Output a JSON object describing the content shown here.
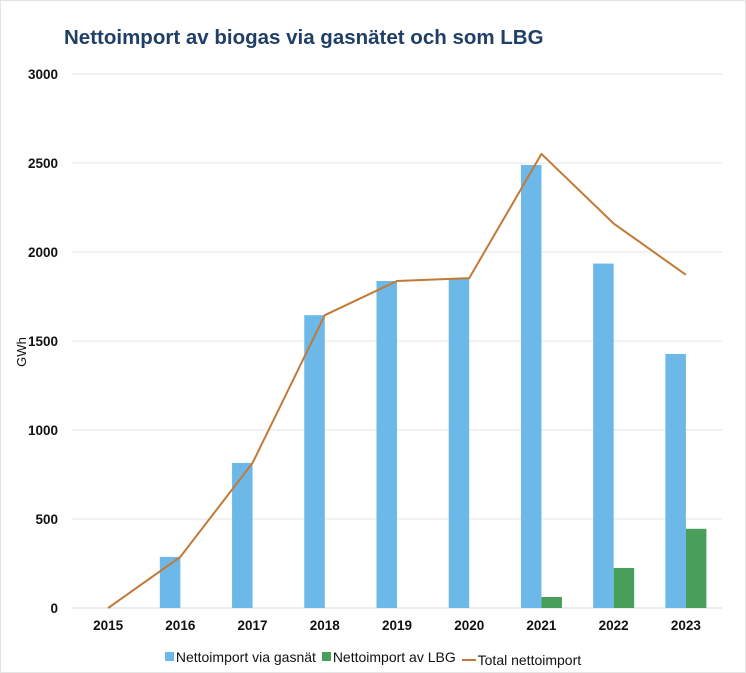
{
  "chart_data": {
    "type": "bar",
    "title": "Nettoimport av biogas via gasnätet och som LBG",
    "xlabel": "",
    "ylabel": "GWh",
    "ylim": [
      0,
      3000
    ],
    "yticks": [
      0,
      500,
      1000,
      1500,
      2000,
      2500,
      3000
    ],
    "grid": true,
    "legend_position": "bottom",
    "categories": [
      "2015",
      "2016",
      "2017",
      "2018",
      "2019",
      "2020",
      "2021",
      "2022",
      "2023"
    ],
    "series": [
      {
        "name": "Nettoimport via gasnät",
        "kind": "bar",
        "color": "#6cb8e8",
        "values": [
          0,
          287,
          815,
          1645,
          1837,
          1853,
          2489,
          1935,
          1427
        ]
      },
      {
        "name": "Nettoimport av LBG",
        "kind": "bar",
        "color": "#4a9e5c",
        "values": [
          0,
          0,
          0,
          0,
          0,
          0,
          62,
          225,
          445
        ]
      },
      {
        "name": "Total nettoimport",
        "kind": "line",
        "color": "#c27a36",
        "values": [
          0,
          287,
          815,
          1645,
          1837,
          1853,
          2551,
          2160,
          1872
        ]
      }
    ]
  }
}
